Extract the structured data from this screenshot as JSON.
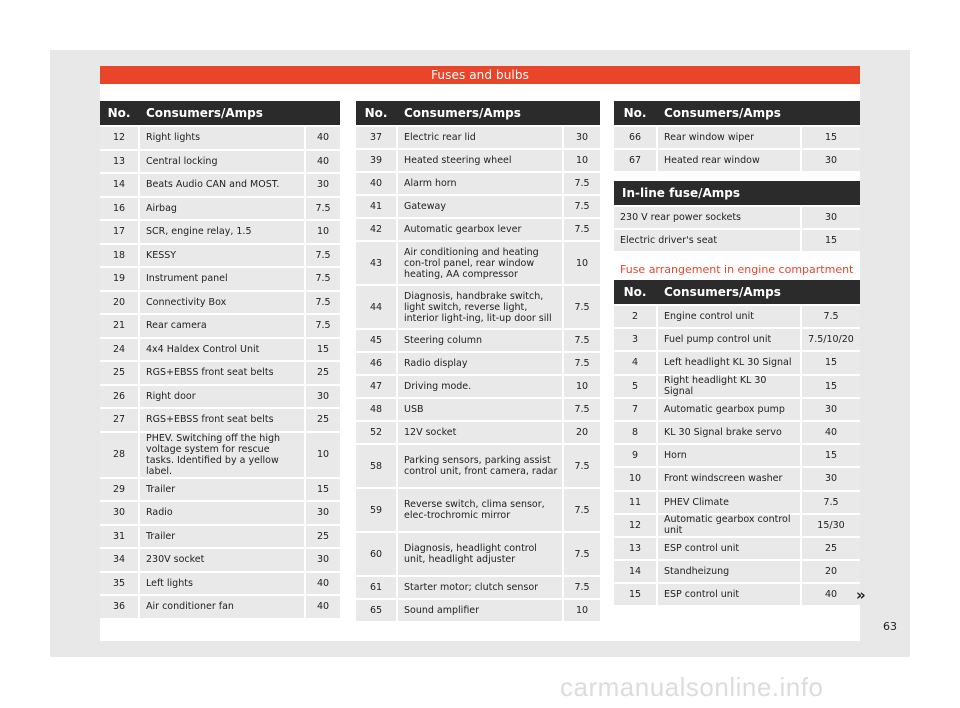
{
  "banner_title": "Fuses and bulbs",
  "col_no": "No.",
  "col_consumers": "Consumers/Amps",
  "table1": [
    {
      "no": "12",
      "name": "Right lights",
      "amps": "40"
    },
    {
      "no": "13",
      "name": "Central locking",
      "amps": "40"
    },
    {
      "no": "14",
      "name": "Beats Audio CAN and MOST.",
      "amps": "30"
    },
    {
      "no": "16",
      "name": "Airbag",
      "amps": "7.5"
    },
    {
      "no": "17",
      "name": "SCR, engine relay, 1.5",
      "amps": "10"
    },
    {
      "no": "18",
      "name": "KESSY",
      "amps": "7.5"
    },
    {
      "no": "19",
      "name": "Instrument panel",
      "amps": "7.5"
    },
    {
      "no": "20",
      "name": "Connectivity Box",
      "amps": "7.5"
    },
    {
      "no": "21",
      "name": "Rear camera",
      "amps": "7.5"
    },
    {
      "no": "24",
      "name": "4x4 Haldex Control Unit",
      "amps": "15"
    },
    {
      "no": "25",
      "name": "RGS+EBSS front seat belts",
      "amps": "25"
    },
    {
      "no": "26",
      "name": "Right door",
      "amps": "30"
    },
    {
      "no": "27",
      "name": "RGS+EBSS front seat belts",
      "amps": "25"
    },
    {
      "no": "28",
      "name": "PHEV. Switching off the high voltage system for rescue tasks. Identified by a yellow label.",
      "amps": "10"
    },
    {
      "no": "29",
      "name": "Trailer",
      "amps": "15"
    },
    {
      "no": "30",
      "name": "Radio",
      "amps": "30"
    },
    {
      "no": "31",
      "name": "Trailer",
      "amps": "25"
    },
    {
      "no": "34",
      "name": "230V socket",
      "amps": "30"
    },
    {
      "no": "35",
      "name": "Left lights",
      "amps": "40"
    },
    {
      "no": "36",
      "name": "Air conditioner fan",
      "amps": "40"
    }
  ],
  "table2": [
    {
      "no": "37",
      "name": "Electric rear lid",
      "amps": "30"
    },
    {
      "no": "39",
      "name": "Heated steering wheel",
      "amps": "10"
    },
    {
      "no": "40",
      "name": "Alarm horn",
      "amps": "7.5"
    },
    {
      "no": "41",
      "name": "Gateway",
      "amps": "7.5"
    },
    {
      "no": "42",
      "name": "Automatic gearbox lever",
      "amps": "7.5"
    },
    {
      "no": "43",
      "name": "Air conditioning and heating con-trol panel, rear window heating, AA compressor",
      "amps": "10"
    },
    {
      "no": "44",
      "name": "Diagnosis, handbrake switch, light switch, reverse light, interior light-ing, lit-up door sill",
      "amps": "7.5"
    },
    {
      "no": "45",
      "name": "Steering column",
      "amps": "7.5"
    },
    {
      "no": "46",
      "name": "Radio display",
      "amps": "7.5"
    },
    {
      "no": "47",
      "name": "Driving mode.",
      "amps": "10"
    },
    {
      "no": "48",
      "name": "USB",
      "amps": "7.5"
    },
    {
      "no": "52",
      "name": "12V socket",
      "amps": "20"
    },
    {
      "no": "58",
      "name": "Parking sensors, parking assist control unit, front camera, radar",
      "amps": "7.5"
    },
    {
      "no": "59",
      "name": "Reverse switch, clima sensor, elec-trochromic mirror",
      "amps": "7.5"
    },
    {
      "no": "60",
      "name": "Diagnosis, headlight control unit, headlight adjuster",
      "amps": "7.5"
    },
    {
      "no": "61",
      "name": "Starter motor; clutch sensor",
      "amps": "7.5"
    },
    {
      "no": "65",
      "name": "Sound amplifier",
      "amps": "10"
    }
  ],
  "table3": [
    {
      "no": "66",
      "name": "Rear window wiper",
      "amps": "15"
    },
    {
      "no": "67",
      "name": "Heated rear window",
      "amps": "30"
    }
  ],
  "inline_title": "In-line fuse/Amps",
  "inline_rows": [
    {
      "name": "230 V rear power sockets",
      "amps": "30"
    },
    {
      "name": "Electric driver's seat",
      "amps": "15"
    }
  ],
  "engine_title": "Fuse arrangement in engine compartment",
  "table4": [
    {
      "no": "2",
      "name": "Engine control unit",
      "amps": "7.5"
    },
    {
      "no": "3",
      "name": "Fuel pump control unit",
      "amps": "7.5/10/20"
    },
    {
      "no": "4",
      "name": "Left headlight KL 30 Signal",
      "amps": "15"
    },
    {
      "no": "5",
      "name": "Right headlight KL 30 Signal",
      "amps": "15"
    },
    {
      "no": "7",
      "name": "Automatic gearbox pump",
      "amps": "30"
    },
    {
      "no": "8",
      "name": "KL 30 Signal brake servo",
      "amps": "40"
    },
    {
      "no": "9",
      "name": "Horn",
      "amps": "15"
    },
    {
      "no": "10",
      "name": "Front windscreen washer",
      "amps": "30"
    },
    {
      "no": "11",
      "name": "PHEV Climate",
      "amps": "7.5"
    },
    {
      "no": "12",
      "name": "Automatic gearbox control unit",
      "amps": "15/30"
    },
    {
      "no": "13",
      "name": "ESP control unit",
      "amps": "25"
    },
    {
      "no": "14",
      "name": "Standheizung",
      "amps": "20"
    },
    {
      "no": "15",
      "name": "ESP control unit",
      "amps": "40"
    }
  ],
  "continue_mark": "»",
  "page_number": "63",
  "watermark": "carmanualsonline.info",
  "colors": {
    "accent": "#e8452a",
    "header": "#2b2b2b",
    "row": "#e9e9e9"
  }
}
